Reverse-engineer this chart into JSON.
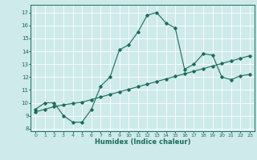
{
  "title": "",
  "xlabel": "Humidex (Indice chaleur)",
  "bg_color": "#ceeaea",
  "line_color": "#1a6b5a",
  "xlim": [
    -0.5,
    23.5
  ],
  "ylim": [
    7.8,
    17.6
  ],
  "xticks": [
    0,
    1,
    2,
    3,
    4,
    5,
    6,
    7,
    8,
    9,
    10,
    11,
    12,
    13,
    14,
    15,
    16,
    17,
    18,
    19,
    20,
    21,
    22,
    23
  ],
  "yticks": [
    8,
    9,
    10,
    11,
    12,
    13,
    14,
    15,
    16,
    17
  ],
  "line1_x": [
    0,
    1,
    2,
    3,
    4,
    5,
    6,
    7,
    8,
    9,
    10,
    11,
    12,
    13,
    14,
    15,
    16,
    17,
    18,
    19,
    20,
    21,
    22,
    23
  ],
  "line1_y": [
    9.5,
    10.0,
    10.0,
    9.0,
    8.5,
    8.5,
    9.5,
    11.3,
    12.0,
    14.1,
    14.5,
    15.5,
    16.8,
    17.0,
    16.2,
    15.8,
    12.6,
    13.0,
    13.8,
    13.7,
    12.0,
    11.8,
    12.1,
    12.2
  ],
  "line2_x": [
    0,
    1,
    2,
    3,
    4,
    5,
    6,
    7,
    8,
    9,
    10,
    11,
    12,
    13,
    14,
    15,
    16,
    17,
    18,
    19,
    20,
    21,
    22,
    23
  ],
  "line2_y": [
    9.3,
    9.5,
    9.7,
    9.85,
    9.95,
    10.05,
    10.25,
    10.45,
    10.65,
    10.85,
    11.05,
    11.25,
    11.45,
    11.65,
    11.85,
    12.05,
    12.25,
    12.45,
    12.65,
    12.85,
    13.05,
    13.25,
    13.45,
    13.65
  ]
}
